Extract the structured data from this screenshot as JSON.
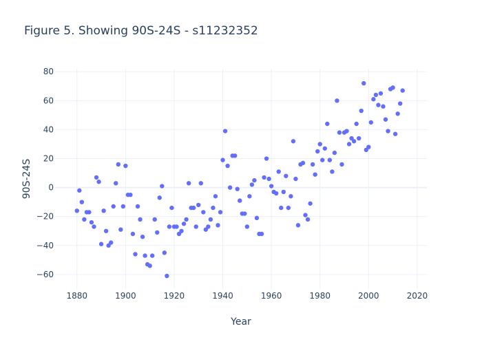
{
  "chart_data": {
    "type": "scatter",
    "title": "Figure 5. Showing 90S-24S - s11232352",
    "xlabel": "Year",
    "ylabel": "90S-24S",
    "xlim": [
      1871,
      2024
    ],
    "ylim": [
      -70,
      82
    ],
    "xticks": [
      1880,
      1900,
      1920,
      1940,
      1960,
      1980,
      2000,
      2020
    ],
    "yticks": [
      -60,
      -40,
      -20,
      0,
      20,
      40,
      60,
      80
    ],
    "marker_color": "#636efa",
    "grid": true,
    "series": [
      {
        "x": [
          1880,
          1881,
          1882,
          1883,
          1884,
          1885,
          1886,
          1887,
          1888,
          1889,
          1890,
          1891,
          1892,
          1893,
          1894,
          1895,
          1896,
          1897,
          1898,
          1899,
          1900,
          1901,
          1902,
          1903,
          1904,
          1905,
          1906,
          1907,
          1908,
          1909,
          1910,
          1911,
          1912,
          1913,
          1914,
          1915,
          1916,
          1917,
          1918,
          1919,
          1920,
          1921,
          1922,
          1923,
          1924,
          1925,
          1926,
          1927,
          1928,
          1929,
          1930,
          1931,
          1932,
          1933,
          1934,
          1935,
          1936,
          1937,
          1938,
          1939,
          1940,
          1941,
          1942,
          1943,
          1944,
          1945,
          1946,
          1947,
          1948,
          1949,
          1950,
          1951,
          1952,
          1953,
          1954,
          1955,
          1956,
          1957,
          1958,
          1959,
          1960,
          1961,
          1962,
          1963,
          1964,
          1965,
          1966,
          1967,
          1968,
          1969,
          1970,
          1971,
          1972,
          1973,
          1974,
          1975,
          1976,
          1977,
          1978,
          1979,
          1980,
          1981,
          1982,
          1983,
          1984,
          1985,
          1986,
          1987,
          1988,
          1989,
          1990,
          1991,
          1992,
          1993,
          1994,
          1995,
          1996,
          1997,
          1998,
          1999,
          2000,
          2001,
          2002,
          2003,
          2004,
          2005,
          2006,
          2007,
          2008,
          2009,
          2010,
          2011,
          2012,
          2013,
          2014
        ],
        "y": [
          -16,
          -2,
          -10,
          -22,
          -17,
          -17,
          -24,
          -27,
          7,
          4,
          -39,
          -16,
          -30,
          -40,
          -38,
          -13,
          3,
          16,
          -29,
          -13,
          15,
          -5,
          -5,
          -32,
          -46,
          -13,
          -22,
          -34,
          -47,
          -53,
          -54,
          -47,
          -22,
          -31,
          -7,
          1,
          -45,
          -61,
          -27,
          -14,
          -27,
          -27,
          -32,
          -30,
          -25,
          -22,
          3,
          -14,
          -14,
          -27,
          -12,
          3,
          -17,
          -29,
          -27,
          -22,
          -14,
          -6,
          -26,
          -17,
          19,
          39,
          15,
          0,
          22,
          22,
          -1,
          -9,
          -18,
          -18,
          -27,
          -6,
          2,
          5,
          -21,
          -32,
          -32,
          7,
          20,
          6,
          1,
          -3,
          -4,
          11,
          -14,
          -3,
          8,
          -14,
          -6,
          32,
          6,
          -26,
          16,
          17,
          -19,
          -22,
          -11,
          16,
          9,
          25,
          30,
          19,
          27,
          44,
          19,
          11,
          24,
          60,
          38,
          16,
          38,
          39,
          30,
          34,
          32,
          44,
          34,
          53,
          72,
          26,
          28,
          45,
          61,
          64,
          57,
          65,
          56,
          47,
          39,
          68,
          69,
          37,
          51,
          58,
          67
        ]
      }
    ]
  }
}
